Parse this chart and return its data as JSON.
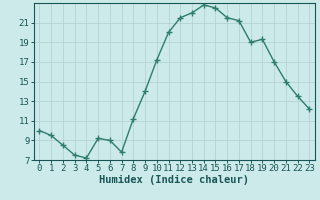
{
  "x": [
    0,
    1,
    2,
    3,
    4,
    5,
    6,
    7,
    8,
    9,
    10,
    11,
    12,
    13,
    14,
    15,
    16,
    17,
    18,
    19,
    20,
    21,
    22,
    23
  ],
  "y": [
    10.0,
    9.5,
    8.5,
    7.5,
    7.2,
    9.2,
    9.0,
    7.8,
    11.2,
    14.0,
    17.2,
    20.0,
    21.5,
    22.0,
    22.8,
    22.5,
    21.5,
    21.2,
    19.0,
    19.3,
    17.0,
    15.0,
    13.5,
    12.2
  ],
  "line_color": "#2e7d6e",
  "bg_color": "#cceaea",
  "grid_color": "#b0cece",
  "xlabel": "Humidex (Indice chaleur)",
  "ylim": [
    7,
    23
  ],
  "xlim": [
    -0.5,
    23.5
  ],
  "yticks": [
    7,
    9,
    11,
    13,
    15,
    17,
    19,
    21
  ],
  "xticks": [
    0,
    1,
    2,
    3,
    4,
    5,
    6,
    7,
    8,
    9,
    10,
    11,
    12,
    13,
    14,
    15,
    16,
    17,
    18,
    19,
    20,
    21,
    22,
    23
  ],
  "marker": "+",
  "linewidth": 1.0,
  "markersize": 4,
  "font_color": "#1a5555",
  "xlabel_fontsize": 7.5,
  "tick_fontsize": 6.5
}
